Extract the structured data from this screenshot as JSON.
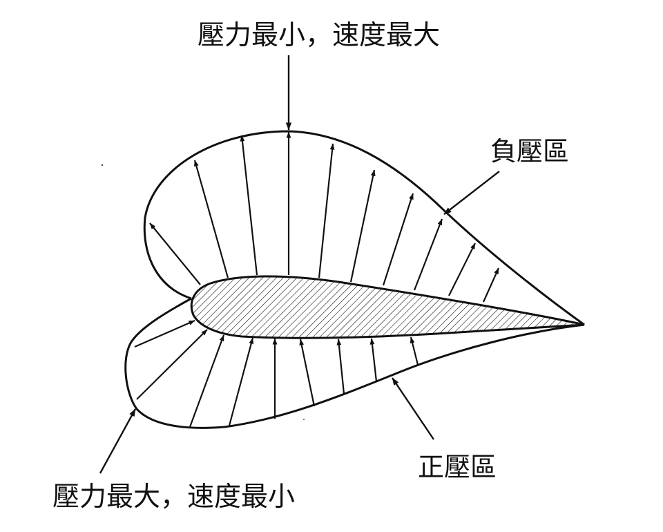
{
  "labels": {
    "top": "壓力最小，速度最大",
    "negative_zone": "負壓區",
    "positive_zone": "正壓區",
    "bottom": "壓力最大，速度最小"
  },
  "colors": {
    "ink": "#111111",
    "background": "#ffffff"
  }
}
